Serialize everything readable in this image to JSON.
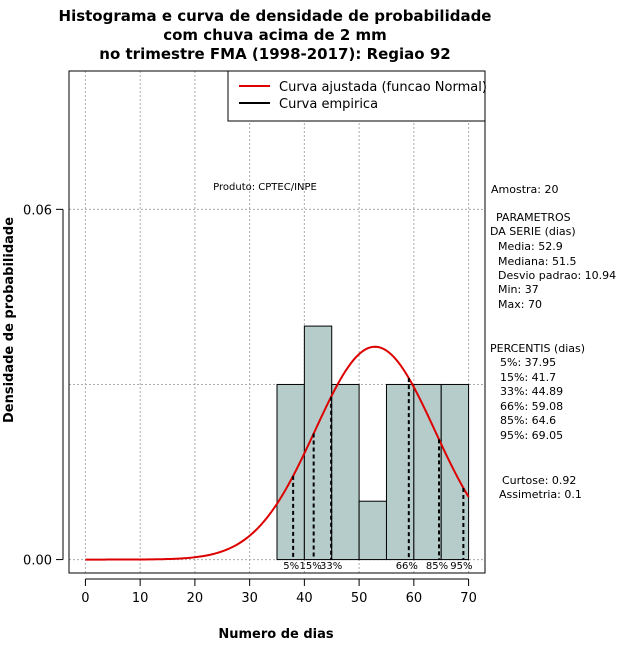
{
  "title": {
    "line1": "Histograma e curva de densidade de probabilidade",
    "line2": "com chuva acima de 2 mm",
    "line3": "no trimestre FMA (1998-2017): Regiao 92"
  },
  "product_label": "Produto: CPTEC/INPE",
  "stats": {
    "amostra": "Amostra: 20",
    "parametros_h1": "PARAMETROS",
    "parametros_h2": "DA SERIE (dias)",
    "media": "Media: 52.9",
    "mediana": "Mediana: 51.5",
    "desvio": "Desvio padrao: 10.94",
    "min": "Min: 37",
    "max": "Max: 70",
    "percentis_h": "PERCENTIS (dias)",
    "p5": "5%: 37.95",
    "p15": "15%: 41.7",
    "p33": "33%: 44.89",
    "p66": "66%: 59.08",
    "p85": "85%: 64.6",
    "p95": "95%: 69.05",
    "curtose": "Curtose: 0.92",
    "assimetria": "Assimetria: 0.1"
  },
  "colors": {
    "bar_fill": "#b6cccb",
    "curve": "#dd0000",
    "grid": "#aaaaaa"
  },
  "chart_data": {
    "type": "bar",
    "title": "Histograma e curva de densidade de probabilidade com chuva acima de 2 mm no trimestre FMA (1998-2017): Regiao 92",
    "xlabel": "Numero de dias",
    "ylabel": "Densidade de probabilidade",
    "xlim": [
      -3,
      73
    ],
    "ylim": [
      -0.0023,
      0.0837
    ],
    "x_ticks": [
      0,
      10,
      20,
      30,
      40,
      50,
      60,
      70
    ],
    "y_ticks": [
      0.0,
      0.06
    ],
    "y_tick_labels": [
      "0.00",
      "0.06"
    ],
    "bins": [
      {
        "x0": 35,
        "x1": 40,
        "density": 0.03
      },
      {
        "x0": 40,
        "x1": 45,
        "density": 0.04
      },
      {
        "x0": 45,
        "x1": 50,
        "density": 0.03
      },
      {
        "x0": 50,
        "x1": 55,
        "density": 0.01
      },
      {
        "x0": 55,
        "x1": 60,
        "density": 0.03
      },
      {
        "x0": 60,
        "x1": 65,
        "density": 0.03
      },
      {
        "x0": 65,
        "x1": 70,
        "density": 0.03
      }
    ],
    "normal_fit": {
      "mean": 52.9,
      "sd": 10.94
    },
    "percentiles": [
      {
        "label": "5%",
        "value": 37.95
      },
      {
        "label": "15%",
        "value": 41.7
      },
      {
        "label": "33%",
        "value": 44.89
      },
      {
        "label": "66%",
        "value": 59.08
      },
      {
        "label": "85%",
        "value": 64.6
      },
      {
        "label": "95%",
        "value": 69.05
      }
    ],
    "legend": {
      "position": "top-right",
      "entries": [
        "Curva ajustada (funcao Normal)",
        "Curva empirica"
      ]
    },
    "grid": true
  }
}
